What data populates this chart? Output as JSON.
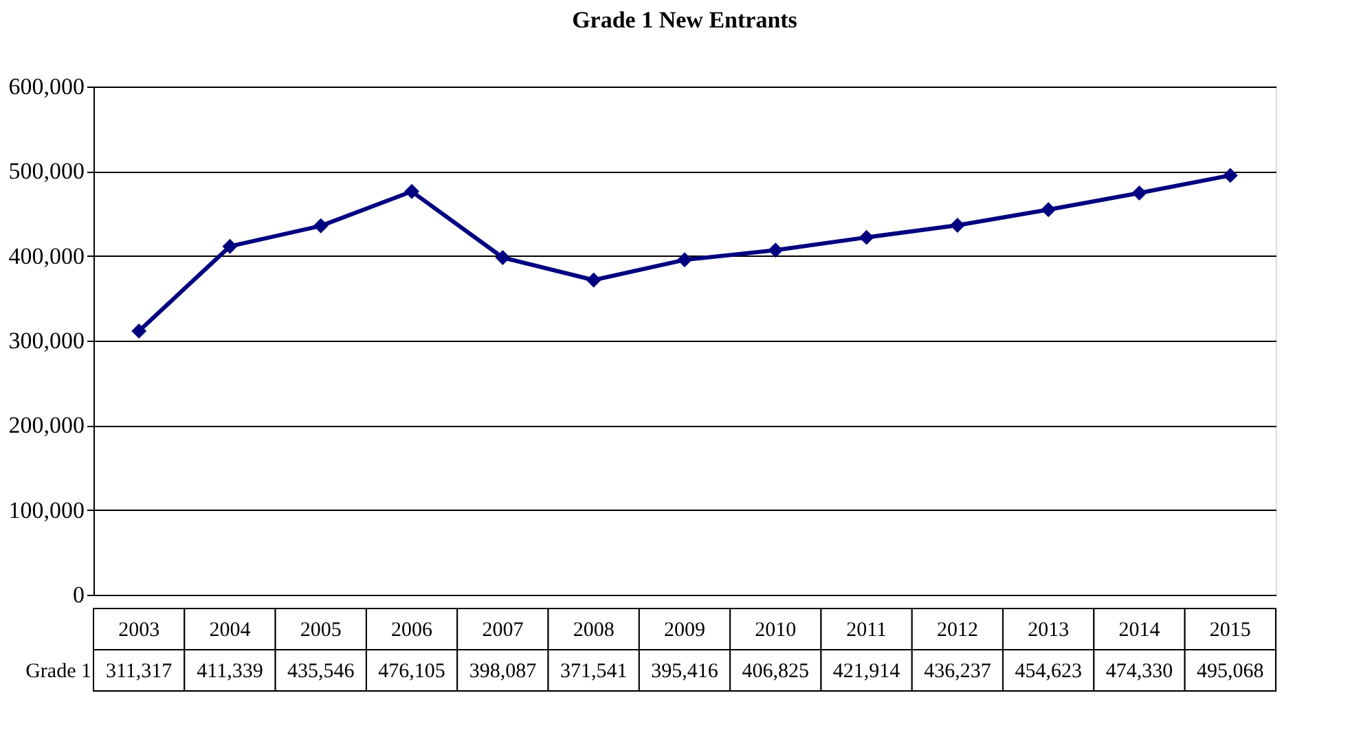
{
  "chart_data": {
    "type": "line",
    "title": "Grade 1 New Entrants",
    "categories": [
      "2003",
      "2004",
      "2005",
      "2006",
      "2007",
      "2008",
      "2009",
      "2010",
      "2011",
      "2012",
      "2013",
      "2014",
      "2015"
    ],
    "series": [
      {
        "name": "Grade 1",
        "color": "#000080",
        "values": [
          311317,
          411339,
          435546,
          476105,
          398087,
          371541,
          395416,
          406825,
          421914,
          436237,
          454623,
          474330,
          495068
        ],
        "value_labels": [
          "311,317",
          "411,339",
          "435,546",
          "476,105",
          "398,087",
          "371,541",
          "395,416",
          "406,825",
          "421,914",
          "436,237",
          "454,623",
          "474,330",
          "495,068"
        ]
      }
    ],
    "ylim": [
      0,
      600000
    ],
    "yticks": [
      0,
      {
        "value": 100000,
        "label": "100,000"
      },
      {
        "value": 200000,
        "label": "200,000"
      },
      {
        "value": 300000,
        "label": "300,000"
      },
      {
        "value": 400000,
        "label": "400,000"
      },
      {
        "value": 500000,
        "label": "500,000"
      },
      {
        "value": 600000,
        "label": "600,000"
      }
    ],
    "grid": "y",
    "legend": false,
    "marker": "diamond",
    "line_style": "solid"
  }
}
